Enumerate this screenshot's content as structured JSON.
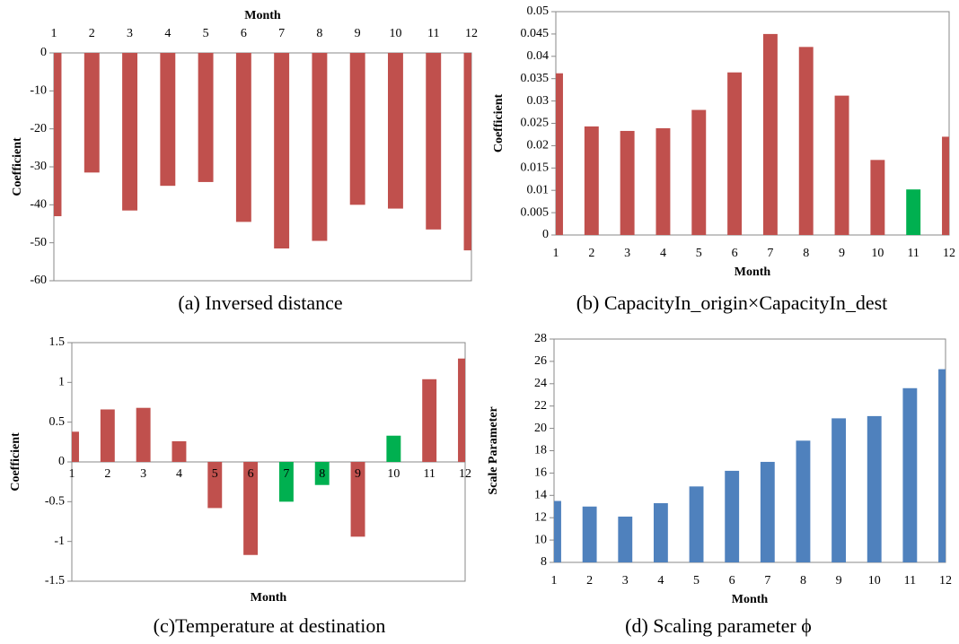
{
  "chart_data": [
    {
      "type": "bar",
      "caption": "(a) Inversed distance",
      "x_label": "Month",
      "y_label": "Coefficient",
      "x_axis_position": "top",
      "categories": [
        "1",
        "2",
        "3",
        "4",
        "5",
        "6",
        "7",
        "8",
        "9",
        "10",
        "11",
        "12"
      ],
      "values": [
        -43,
        -31.5,
        -41.5,
        -35,
        -34,
        -44.5,
        -51.5,
        -49.5,
        -40,
        -41,
        -46.5,
        -52
      ],
      "colors": [
        "#c0504d",
        "#c0504d",
        "#c0504d",
        "#c0504d",
        "#c0504d",
        "#c0504d",
        "#c0504d",
        "#c0504d",
        "#c0504d",
        "#c0504d",
        "#c0504d",
        "#c0504d"
      ],
      "ylim": [
        -60,
        0
      ],
      "yticks": [
        0,
        -10,
        -20,
        -30,
        -40,
        -50,
        -60
      ]
    },
    {
      "type": "bar",
      "caption": "(b) CapacityIn_origin×CapacityIn_dest",
      "x_label": "Month",
      "y_label": "Coefficient",
      "x_axis_position": "bottom",
      "categories": [
        "1",
        "2",
        "3",
        "4",
        "5",
        "6",
        "7",
        "8",
        "9",
        "10",
        "11",
        "12"
      ],
      "values": [
        0.0362,
        0.0243,
        0.0233,
        0.0239,
        0.028,
        0.0364,
        0.045,
        0.0421,
        0.0312,
        0.0168,
        0.0102,
        0.022
      ],
      "colors": [
        "#c0504d",
        "#c0504d",
        "#c0504d",
        "#c0504d",
        "#c0504d",
        "#c0504d",
        "#c0504d",
        "#c0504d",
        "#c0504d",
        "#c0504d",
        "#00b050",
        "#c0504d"
      ],
      "ylim": [
        0,
        0.05
      ],
      "yticks": [
        0,
        0.005,
        0.01,
        0.015,
        0.02,
        0.025,
        0.03,
        0.035,
        0.04,
        0.045,
        0.05
      ]
    },
    {
      "type": "bar",
      "caption": "(c)Temperature at destination",
      "x_label": "Month",
      "y_label": "Coefficient",
      "x_axis_position": "zero",
      "categories": [
        "1",
        "2",
        "3",
        "4",
        "5",
        "6",
        "7",
        "8",
        "9",
        "10",
        "11",
        "12"
      ],
      "values": [
        0.38,
        0.66,
        0.68,
        0.26,
        -0.58,
        -1.17,
        -0.5,
        -0.29,
        -0.94,
        0.33,
        1.04,
        1.3
      ],
      "colors": [
        "#c0504d",
        "#c0504d",
        "#c0504d",
        "#c0504d",
        "#c0504d",
        "#c0504d",
        "#00b050",
        "#00b050",
        "#c0504d",
        "#00b050",
        "#c0504d",
        "#c0504d"
      ],
      "ylim": [
        -1.5,
        1.5
      ],
      "yticks": [
        -1.5,
        -1,
        -0.5,
        0,
        0.5,
        1,
        1.5
      ]
    },
    {
      "type": "bar",
      "caption": "(d) Scaling parameter ϕ",
      "x_label": "Month",
      "y_label": "Scale Parameter",
      "x_axis_position": "bottom",
      "categories": [
        "1",
        "2",
        "3",
        "4",
        "5",
        "6",
        "7",
        "8",
        "9",
        "10",
        "11",
        "12"
      ],
      "values": [
        13.5,
        13.0,
        12.1,
        13.3,
        14.8,
        16.2,
        17.0,
        18.9,
        20.9,
        21.1,
        23.6,
        25.3
      ],
      "colors": [
        "#4f81bd",
        "#4f81bd",
        "#4f81bd",
        "#4f81bd",
        "#4f81bd",
        "#4f81bd",
        "#4f81bd",
        "#4f81bd",
        "#4f81bd",
        "#4f81bd",
        "#4f81bd",
        "#4f81bd"
      ],
      "ylim": [
        8,
        28
      ],
      "yticks": [
        8,
        10,
        12,
        14,
        16,
        18,
        20,
        22,
        24,
        26,
        28
      ]
    }
  ]
}
